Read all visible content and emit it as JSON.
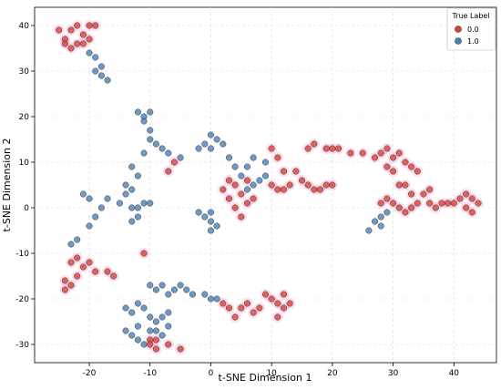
{
  "chart_data": {
    "type": "scatter",
    "title": "",
    "xlabel": "t-SNE Dimension 1",
    "ylabel": "t-SNE Dimension 2",
    "xlim": [
      -29,
      47
    ],
    "ylim": [
      -34,
      44
    ],
    "xticks": [
      -20,
      -10,
      0,
      10,
      20,
      30,
      40
    ],
    "yticks": [
      -30,
      -20,
      -10,
      0,
      10,
      20,
      30,
      40
    ],
    "grid": true,
    "legend": {
      "title": "True Label",
      "placement": "top-right"
    },
    "series": [
      {
        "name": "0.0",
        "color": "#d9403a",
        "points": [
          [
            -25,
            39
          ],
          [
            -24,
            37
          ],
          [
            -23,
            39
          ],
          [
            -22,
            40
          ],
          [
            -21,
            38
          ],
          [
            -20,
            40
          ],
          [
            -19,
            40
          ],
          [
            -22,
            36
          ],
          [
            -23,
            35
          ],
          [
            -20,
            37
          ],
          [
            -24,
            36
          ],
          [
            -21,
            36
          ],
          [
            -22,
            -11
          ],
          [
            -21,
            -13
          ],
          [
            -20,
            -12
          ],
          [
            -23,
            -12
          ],
          [
            -24,
            -16
          ],
          [
            -23,
            -17
          ],
          [
            -22,
            -15
          ],
          [
            -24,
            -18
          ],
          [
            -19,
            -14
          ],
          [
            -17,
            -14
          ],
          [
            -16,
            -15
          ],
          [
            -11,
            -10
          ],
          [
            -6,
            10
          ],
          [
            -7,
            8
          ],
          [
            -10,
            -29
          ],
          [
            -9,
            -31
          ],
          [
            -10,
            -30
          ],
          [
            -7,
            -30
          ],
          [
            -5,
            -31
          ],
          [
            -9,
            -29
          ],
          [
            2,
            -21
          ],
          [
            3,
            -22
          ],
          [
            4,
            -24
          ],
          [
            5,
            -22
          ],
          [
            6,
            -21
          ],
          [
            7,
            -23
          ],
          [
            8,
            -22
          ],
          [
            9,
            -19
          ],
          [
            10,
            -20
          ],
          [
            11,
            -21
          ],
          [
            12,
            -22
          ],
          [
            13,
            -21
          ],
          [
            11,
            -24
          ],
          [
            12,
            -19
          ],
          [
            2,
            4
          ],
          [
            3,
            2
          ],
          [
            4,
            5
          ],
          [
            5,
            3
          ],
          [
            6,
            1
          ],
          [
            7,
            2
          ],
          [
            4,
            0
          ],
          [
            5,
            -2
          ],
          [
            6,
            6
          ],
          [
            3,
            6
          ],
          [
            10,
            13
          ],
          [
            11,
            11
          ],
          [
            12,
            8
          ],
          [
            10,
            5
          ],
          [
            11,
            4
          ],
          [
            12,
            4
          ],
          [
            13,
            5
          ],
          [
            14,
            8
          ],
          [
            15,
            6
          ],
          [
            16,
            5
          ],
          [
            17,
            4
          ],
          [
            18,
            4
          ],
          [
            19,
            5
          ],
          [
            20,
            5
          ],
          [
            16,
            13
          ],
          [
            17,
            14
          ],
          [
            19,
            13
          ],
          [
            20,
            13
          ],
          [
            21,
            13
          ],
          [
            23,
            12
          ],
          [
            25,
            12
          ],
          [
            27,
            11
          ],
          [
            28,
            12
          ],
          [
            29,
            13
          ],
          [
            30,
            11
          ],
          [
            31,
            12
          ],
          [
            32,
            10
          ],
          [
            33,
            9
          ],
          [
            34,
            8
          ],
          [
            29,
            9
          ],
          [
            30,
            8
          ],
          [
            31,
            5
          ],
          [
            32,
            5
          ],
          [
            33,
            3
          ],
          [
            29,
            2
          ],
          [
            30,
            1
          ],
          [
            31,
            0
          ],
          [
            32,
            -1
          ],
          [
            33,
            0
          ],
          [
            34,
            1
          ],
          [
            35,
            3
          ],
          [
            36,
            1
          ],
          [
            36,
            4
          ],
          [
            37,
            0
          ],
          [
            38,
            1
          ],
          [
            28,
            1
          ],
          [
            39,
            1
          ],
          [
            40,
            1
          ],
          [
            41,
            2
          ],
          [
            42,
            3
          ],
          [
            43,
            2
          ],
          [
            42,
            0
          ],
          [
            43,
            -1
          ],
          [
            44,
            1
          ]
        ]
      },
      {
        "name": "1.0",
        "color": "#4a7fb5",
        "points": [
          [
            -20,
            34
          ],
          [
            -19,
            33
          ],
          [
            -19,
            30
          ],
          [
            -18,
            31
          ],
          [
            -18,
            29
          ],
          [
            -17,
            28
          ],
          [
            -12,
            21
          ],
          [
            -11,
            20
          ],
          [
            -10,
            21
          ],
          [
            -11,
            19
          ],
          [
            -10,
            17
          ],
          [
            -10,
            15
          ],
          [
            -9,
            14
          ],
          [
            -11,
            12
          ],
          [
            -8,
            13
          ],
          [
            -7,
            12
          ],
          [
            -5,
            11
          ],
          [
            -13,
            9
          ],
          [
            -12,
            7
          ],
          [
            -14,
            5
          ],
          [
            -13,
            4
          ],
          [
            -14,
            3
          ],
          [
            -15,
            1
          ],
          [
            -17,
            2
          ],
          [
            -18,
            0
          ],
          [
            -20,
            2
          ],
          [
            -21,
            3
          ],
          [
            -19,
            -2
          ],
          [
            -20,
            -4
          ],
          [
            -22,
            -7
          ],
          [
            -23,
            -8
          ],
          [
            -11,
            1
          ],
          [
            -10,
            1
          ],
          [
            -12,
            0
          ],
          [
            -13,
            0
          ],
          [
            -12,
            -2
          ],
          [
            -13,
            -3
          ],
          [
            -1,
            14
          ],
          [
            0,
            16
          ],
          [
            1,
            15
          ],
          [
            2,
            14
          ],
          [
            0,
            13
          ],
          [
            -2,
            13
          ],
          [
            3,
            11
          ],
          [
            4,
            9
          ],
          [
            5,
            7
          ],
          [
            6,
            9
          ],
          [
            7,
            11
          ],
          [
            9,
            10
          ],
          [
            9,
            7
          ],
          [
            8,
            6
          ],
          [
            7,
            5
          ],
          [
            6,
            4
          ],
          [
            0,
            -1
          ],
          [
            0,
            -3
          ],
          [
            -1,
            -2
          ],
          [
            -2,
            -1
          ],
          [
            1,
            -4
          ],
          [
            0,
            -5
          ],
          [
            -10,
            -17
          ],
          [
            -9,
            -18
          ],
          [
            -8,
            -17
          ],
          [
            -7,
            -19
          ],
          [
            -6,
            -18
          ],
          [
            -5,
            -17
          ],
          [
            -4,
            -18
          ],
          [
            -3,
            -19
          ],
          [
            -1,
            -19
          ],
          [
            0,
            -20
          ],
          [
            1,
            -20
          ],
          [
            -14,
            -22
          ],
          [
            -13,
            -23
          ],
          [
            -12,
            -21
          ],
          [
            -11,
            -22
          ],
          [
            -10,
            -24
          ],
          [
            -9,
            -25
          ],
          [
            -8,
            -24
          ],
          [
            -7,
            -23
          ],
          [
            -14,
            -27
          ],
          [
            -13,
            -28
          ],
          [
            -12,
            -29
          ],
          [
            -11,
            -30
          ],
          [
            -12,
            -26
          ],
          [
            -10,
            -27
          ],
          [
            -9,
            -27
          ],
          [
            -8,
            -28
          ],
          [
            -7,
            -26
          ],
          [
            26,
            -5
          ],
          [
            27,
            -3
          ],
          [
            28,
            -2
          ],
          [
            29,
            -1
          ],
          [
            28,
            -4
          ]
        ]
      }
    ]
  }
}
